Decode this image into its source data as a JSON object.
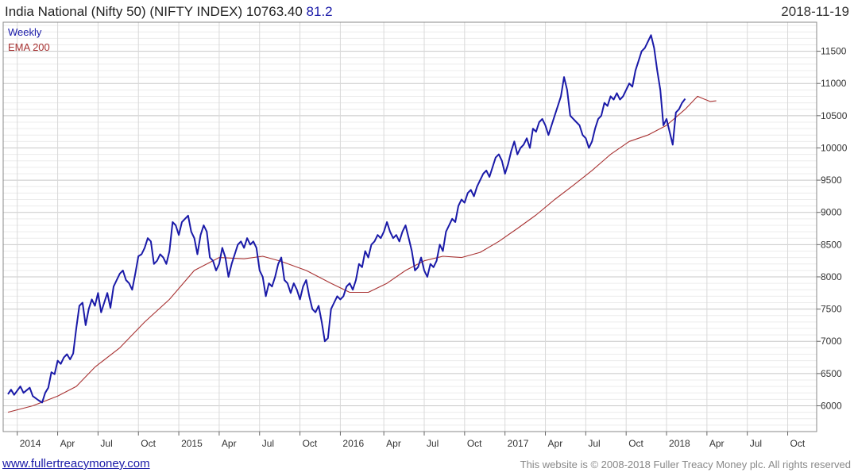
{
  "header": {
    "title": "India National (Nifty 50) (NIFTY INDEX) 10763.40",
    "last_change": "81.2",
    "date": "2018-11-19"
  },
  "footer": {
    "link": "www.fullertreacymoney.com",
    "copyright": "This website is © 2008-2018 Fuller Treacy Money plc. All rights reserved"
  },
  "colors": {
    "weekly": "#1a1aa8",
    "ema": "#a83232",
    "grid": "#d9d9d9",
    "frame": "#888888"
  },
  "chart_data": {
    "type": "line",
    "title": "India National (Nifty 50) (NIFTY INDEX) 10763.40",
    "xlabel": "",
    "ylabel": "",
    "ylim": [
      5600,
      11950
    ],
    "xlim": [
      0,
      257
    ],
    "y_ticks": [
      6000,
      6500,
      7000,
      7500,
      8000,
      8500,
      9000,
      9500,
      10000,
      10500,
      11000,
      11500
    ],
    "grid": true,
    "grid_minor_step": 100,
    "legend": "top-left",
    "x_ticks": [
      {
        "week": 3,
        "label": "2014"
      },
      {
        "week": 16,
        "label": "Apr"
      },
      {
        "week": 29,
        "label": "Jul"
      },
      {
        "week": 42,
        "label": "Oct"
      },
      {
        "week": 55,
        "label": "2015"
      },
      {
        "week": 68,
        "label": "Apr"
      },
      {
        "week": 81,
        "label": "Jul"
      },
      {
        "week": 94,
        "label": "Oct"
      },
      {
        "week": 107,
        "label": "2016"
      },
      {
        "week": 121,
        "label": "Apr"
      },
      {
        "week": 134,
        "label": "Jul"
      },
      {
        "week": 147,
        "label": "Oct"
      },
      {
        "week": 160,
        "label": "2017"
      },
      {
        "week": 173,
        "label": "Apr"
      },
      {
        "week": 186,
        "label": "Jul"
      },
      {
        "week": 199,
        "label": "Oct"
      },
      {
        "week": 212,
        "label": "2018"
      },
      {
        "week": 225,
        "label": "Apr"
      },
      {
        "week": 238,
        "label": "Jul"
      },
      {
        "week": 251,
        "label": "Oct"
      }
    ],
    "series": [
      {
        "name": "Weekly",
        "points": [
          [
            0,
            6180
          ],
          [
            1,
            6250
          ],
          [
            2,
            6170
          ],
          [
            4,
            6300
          ],
          [
            5,
            6200
          ],
          [
            7,
            6280
          ],
          [
            8,
            6150
          ],
          [
            10,
            6080
          ],
          [
            11,
            6050
          ],
          [
            12,
            6200
          ],
          [
            13,
            6280
          ],
          [
            14,
            6520
          ],
          [
            15,
            6490
          ],
          [
            16,
            6700
          ],
          [
            17,
            6650
          ],
          [
            18,
            6750
          ],
          [
            19,
            6800
          ],
          [
            20,
            6720
          ],
          [
            21,
            6810
          ],
          [
            22,
            7200
          ],
          [
            23,
            7550
          ],
          [
            24,
            7600
          ],
          [
            25,
            7250
          ],
          [
            26,
            7500
          ],
          [
            27,
            7650
          ],
          [
            28,
            7550
          ],
          [
            29,
            7750
          ],
          [
            30,
            7450
          ],
          [
            31,
            7600
          ],
          [
            32,
            7750
          ],
          [
            33,
            7520
          ],
          [
            34,
            7850
          ],
          [
            35,
            7950
          ],
          [
            36,
            8050
          ],
          [
            37,
            8100
          ],
          [
            38,
            7950
          ],
          [
            39,
            7900
          ],
          [
            40,
            7800
          ],
          [
            41,
            8050
          ],
          [
            42,
            8320
          ],
          [
            43,
            8350
          ],
          [
            44,
            8450
          ],
          [
            45,
            8600
          ],
          [
            46,
            8550
          ],
          [
            47,
            8200
          ],
          [
            48,
            8250
          ],
          [
            49,
            8350
          ],
          [
            50,
            8300
          ],
          [
            51,
            8200
          ],
          [
            52,
            8400
          ],
          [
            53,
            8850
          ],
          [
            54,
            8800
          ],
          [
            55,
            8650
          ],
          [
            56,
            8850
          ],
          [
            57,
            8900
          ],
          [
            58,
            8950
          ],
          [
            59,
            8700
          ],
          [
            60,
            8600
          ],
          [
            61,
            8350
          ],
          [
            62,
            8650
          ],
          [
            63,
            8800
          ],
          [
            64,
            8700
          ],
          [
            65,
            8300
          ],
          [
            66,
            8250
          ],
          [
            67,
            8100
          ],
          [
            68,
            8200
          ],
          [
            69,
            8450
          ],
          [
            70,
            8300
          ],
          [
            71,
            8000
          ],
          [
            72,
            8200
          ],
          [
            73,
            8350
          ],
          [
            74,
            8500
          ],
          [
            75,
            8550
          ],
          [
            76,
            8450
          ],
          [
            77,
            8600
          ],
          [
            78,
            8500
          ],
          [
            79,
            8550
          ],
          [
            80,
            8450
          ],
          [
            81,
            8100
          ],
          [
            82,
            8000
          ],
          [
            83,
            7700
          ],
          [
            84,
            7900
          ],
          [
            85,
            7850
          ],
          [
            86,
            8000
          ],
          [
            87,
            8200
          ],
          [
            88,
            8300
          ],
          [
            89,
            7950
          ],
          [
            90,
            7900
          ],
          [
            91,
            7750
          ],
          [
            92,
            7900
          ],
          [
            93,
            7800
          ],
          [
            94,
            7650
          ],
          [
            95,
            7850
          ],
          [
            96,
            7950
          ],
          [
            97,
            7700
          ],
          [
            98,
            7500
          ],
          [
            99,
            7450
          ],
          [
            100,
            7550
          ],
          [
            101,
            7300
          ],
          [
            102,
            7000
          ],
          [
            103,
            7050
          ],
          [
            104,
            7500
          ],
          [
            105,
            7600
          ],
          [
            106,
            7700
          ],
          [
            107,
            7650
          ],
          [
            108,
            7700
          ],
          [
            109,
            7850
          ],
          [
            110,
            7900
          ],
          [
            111,
            7800
          ],
          [
            112,
            7950
          ],
          [
            113,
            8200
          ],
          [
            114,
            8150
          ],
          [
            115,
            8400
          ],
          [
            116,
            8300
          ],
          [
            117,
            8500
          ],
          [
            118,
            8550
          ],
          [
            119,
            8650
          ],
          [
            120,
            8600
          ],
          [
            121,
            8700
          ],
          [
            122,
            8850
          ],
          [
            123,
            8700
          ],
          [
            124,
            8600
          ],
          [
            125,
            8650
          ],
          [
            126,
            8550
          ],
          [
            127,
            8700
          ],
          [
            128,
            8800
          ],
          [
            129,
            8600
          ],
          [
            130,
            8400
          ],
          [
            131,
            8100
          ],
          [
            132,
            8150
          ],
          [
            133,
            8300
          ],
          [
            134,
            8100
          ],
          [
            135,
            8000
          ],
          [
            136,
            8200
          ],
          [
            137,
            8150
          ],
          [
            138,
            8250
          ],
          [
            139,
            8500
          ],
          [
            140,
            8400
          ],
          [
            141,
            8700
          ],
          [
            142,
            8800
          ],
          [
            143,
            8900
          ],
          [
            144,
            8850
          ],
          [
            145,
            9100
          ],
          [
            146,
            9200
          ],
          [
            147,
            9150
          ],
          [
            148,
            9300
          ],
          [
            149,
            9350
          ],
          [
            150,
            9250
          ],
          [
            151,
            9400
          ],
          [
            152,
            9500
          ],
          [
            153,
            9600
          ],
          [
            154,
            9650
          ],
          [
            155,
            9550
          ],
          [
            156,
            9700
          ],
          [
            157,
            9850
          ],
          [
            158,
            9900
          ],
          [
            159,
            9800
          ],
          [
            160,
            9600
          ],
          [
            161,
            9750
          ],
          [
            162,
            9950
          ],
          [
            163,
            10100
          ],
          [
            164,
            9900
          ],
          [
            165,
            10000
          ],
          [
            166,
            10050
          ],
          [
            167,
            10150
          ],
          [
            168,
            10000
          ],
          [
            169,
            10300
          ],
          [
            170,
            10250
          ],
          [
            171,
            10400
          ],
          [
            172,
            10450
          ],
          [
            173,
            10350
          ],
          [
            174,
            10200
          ],
          [
            175,
            10350
          ],
          [
            176,
            10500
          ],
          [
            177,
            10650
          ],
          [
            178,
            10800
          ],
          [
            179,
            11100
          ],
          [
            180,
            10900
          ],
          [
            181,
            10500
          ],
          [
            182,
            10450
          ],
          [
            183,
            10400
          ],
          [
            184,
            10350
          ],
          [
            185,
            10200
          ],
          [
            186,
            10150
          ],
          [
            187,
            10000
          ],
          [
            188,
            10100
          ],
          [
            189,
            10300
          ],
          [
            190,
            10450
          ],
          [
            191,
            10500
          ],
          [
            192,
            10700
          ],
          [
            193,
            10650
          ],
          [
            194,
            10800
          ],
          [
            195,
            10750
          ],
          [
            196,
            10850
          ],
          [
            197,
            10750
          ],
          [
            198,
            10800
          ],
          [
            199,
            10900
          ],
          [
            200,
            11000
          ],
          [
            201,
            10950
          ],
          [
            202,
            11200
          ],
          [
            203,
            11350
          ],
          [
            204,
            11500
          ],
          [
            205,
            11550
          ],
          [
            206,
            11650
          ],
          [
            207,
            11750
          ],
          [
            208,
            11550
          ],
          [
            209,
            11200
          ],
          [
            210,
            10900
          ],
          [
            211,
            10350
          ],
          [
            212,
            10450
          ],
          [
            213,
            10250
          ],
          [
            214,
            10050
          ],
          [
            215,
            10550
          ],
          [
            216,
            10600
          ],
          [
            217,
            10700
          ],
          [
            218,
            10763
          ]
        ]
      },
      {
        "name": "EMA 200",
        "points": [
          [
            0,
            5900
          ],
          [
            8,
            6000
          ],
          [
            16,
            6150
          ],
          [
            22,
            6300
          ],
          [
            28,
            6600
          ],
          [
            36,
            6900
          ],
          [
            44,
            7300
          ],
          [
            52,
            7650
          ],
          [
            60,
            8100
          ],
          [
            68,
            8300
          ],
          [
            76,
            8280
          ],
          [
            82,
            8320
          ],
          [
            88,
            8240
          ],
          [
            96,
            8100
          ],
          [
            104,
            7900
          ],
          [
            110,
            7760
          ],
          [
            116,
            7760
          ],
          [
            122,
            7900
          ],
          [
            128,
            8100
          ],
          [
            134,
            8250
          ],
          [
            140,
            8320
          ],
          [
            146,
            8300
          ],
          [
            152,
            8380
          ],
          [
            158,
            8550
          ],
          [
            164,
            8750
          ],
          [
            170,
            8960
          ],
          [
            176,
            9200
          ],
          [
            182,
            9420
          ],
          [
            188,
            9650
          ],
          [
            194,
            9900
          ],
          [
            200,
            10100
          ],
          [
            206,
            10200
          ],
          [
            212,
            10350
          ],
          [
            218,
            10600
          ],
          [
            222,
            10800
          ],
          [
            224,
            10760
          ],
          [
            226,
            10720
          ],
          [
            228,
            10730
          ]
        ]
      }
    ]
  }
}
